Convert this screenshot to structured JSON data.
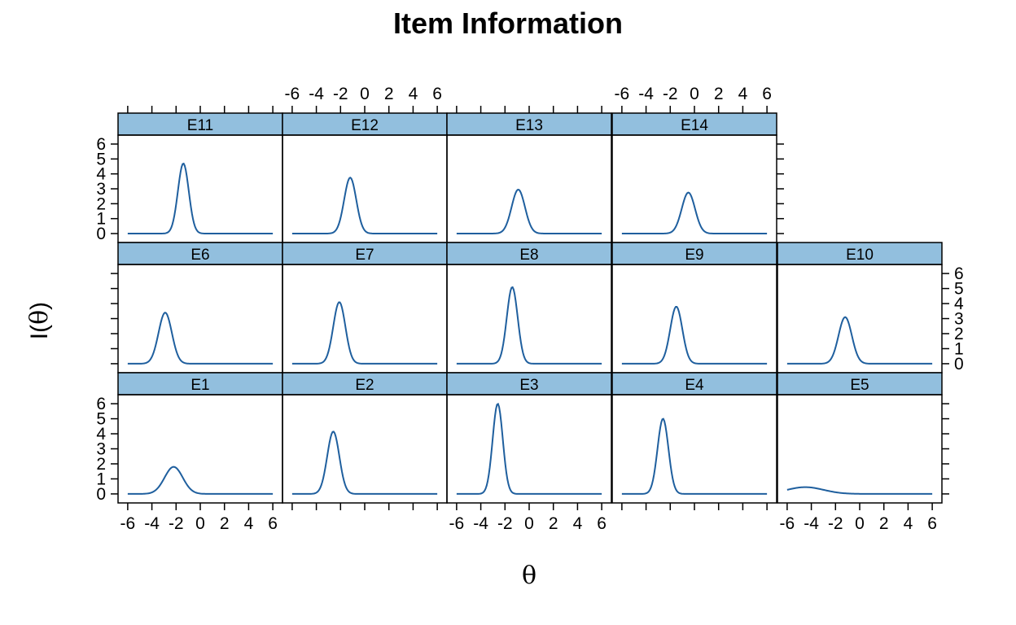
{
  "chart_data": {
    "type": "line",
    "title": "Item Information",
    "xlabel": "θ",
    "ylabel_prefix": "I(",
    "ylabel_symbol": "θ",
    "ylabel_suffix": ")",
    "xlim": [
      -6.8,
      6.8
    ],
    "ylim": [
      -0.6,
      6.6
    ],
    "x_ticks": [
      -6,
      -4,
      -2,
      0,
      2,
      4,
      6
    ],
    "x_tick_labels": [
      "-6",
      "-4",
      "-2",
      "0",
      "2",
      "4",
      "6"
    ],
    "y_ticks": [
      0,
      1,
      2,
      3,
      4,
      5,
      6
    ],
    "y_tick_labels": [
      "0",
      "1",
      "2",
      "3",
      "4",
      "5",
      "6"
    ],
    "grid": false,
    "layout": "lattice 5 columns x 3 rows",
    "line_color": "#1f5f9e",
    "strip_color": "#92bfde",
    "series": [
      {
        "name": "E1",
        "peak_theta": -2.2,
        "peak_info": 1.8,
        "spread": 0.75
      },
      {
        "name": "E2",
        "peak_theta": -2.6,
        "peak_info": 4.15,
        "spread": 0.5
      },
      {
        "name": "E3",
        "peak_theta": -2.6,
        "peak_info": 6.0,
        "spread": 0.42
      },
      {
        "name": "E4",
        "peak_theta": -2.6,
        "peak_info": 5.0,
        "spread": 0.45
      },
      {
        "name": "E5",
        "peak_theta": -4.5,
        "peak_info": 0.45,
        "spread": 1.5
      },
      {
        "name": "E6",
        "peak_theta": -2.9,
        "peak_info": 3.4,
        "spread": 0.55
      },
      {
        "name": "E7",
        "peak_theta": -2.1,
        "peak_info": 4.1,
        "spread": 0.5
      },
      {
        "name": "E8",
        "peak_theta": -1.4,
        "peak_info": 5.1,
        "spread": 0.45
      },
      {
        "name": "E9",
        "peak_theta": -1.5,
        "peak_info": 3.8,
        "spread": 0.5
      },
      {
        "name": "E10",
        "peak_theta": -1.2,
        "peak_info": 3.1,
        "spread": 0.55
      },
      {
        "name": "E11",
        "peak_theta": -1.4,
        "peak_info": 4.7,
        "spread": 0.45
      },
      {
        "name": "E12",
        "peak_theta": -1.2,
        "peak_info": 3.75,
        "spread": 0.5
      },
      {
        "name": "E13",
        "peak_theta": -0.9,
        "peak_info": 2.95,
        "spread": 0.55
      },
      {
        "name": "E14",
        "peak_theta": -0.5,
        "peak_info": 2.75,
        "spread": 0.55
      }
    ]
  }
}
